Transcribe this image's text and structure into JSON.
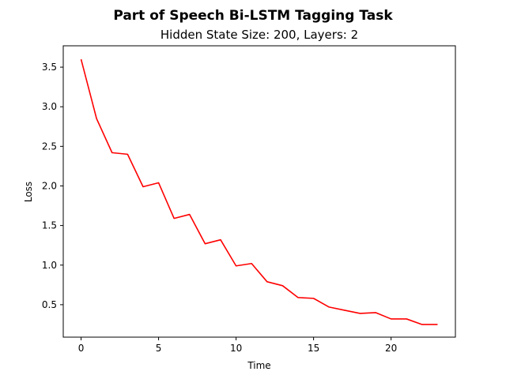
{
  "chart_data": {
    "type": "line",
    "title": "Part of Speech Bi-LSTM Tagging Task",
    "subtitle": "Hidden State Size: 200, Layers: 2",
    "xlabel": "Time",
    "ylabel": "Loss",
    "xlim": [
      -1.15,
      24.15
    ],
    "ylim": [
      0.09,
      3.77
    ],
    "xticks": [
      0,
      5,
      10,
      15,
      20
    ],
    "yticks": [
      0.5,
      1.0,
      1.5,
      2.0,
      2.5,
      3.0,
      3.5
    ],
    "grid": false,
    "series": [
      {
        "color": "#ff0000",
        "x": [
          0,
          1,
          2,
          3,
          4,
          5,
          6,
          7,
          8,
          9,
          10,
          11,
          12,
          13,
          14,
          15,
          16,
          17,
          18,
          19,
          20,
          21,
          22,
          23
        ],
        "values": [
          3.6,
          2.85,
          2.42,
          2.4,
          1.99,
          2.04,
          1.59,
          1.64,
          1.27,
          1.32,
          0.99,
          1.02,
          0.79,
          0.74,
          0.59,
          0.58,
          0.47,
          0.43,
          0.39,
          0.4,
          0.32,
          0.32,
          0.25,
          0.25
        ]
      }
    ]
  }
}
